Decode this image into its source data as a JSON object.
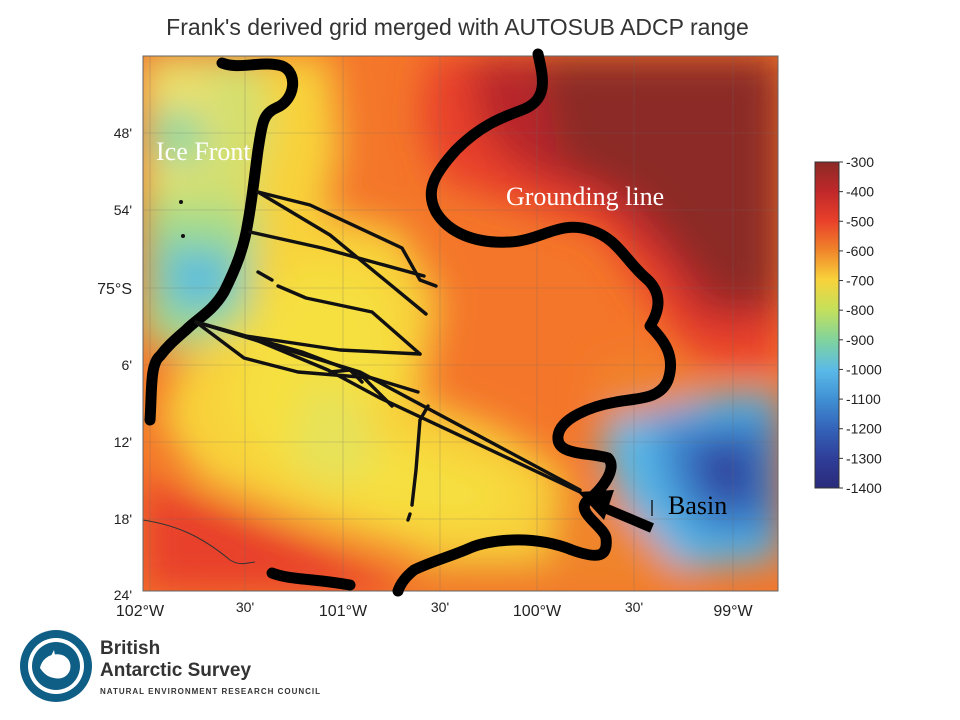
{
  "title": "Frank's derived grid merged with AUTOSUB ADCP range",
  "map": {
    "lat_labels": [
      "48'",
      "54'",
      "75°S",
      "6'",
      "12'",
      "18'",
      "24'"
    ],
    "lon_labels": [
      "102°W",
      "30'",
      "101°W",
      "30'",
      "100°W",
      "30'",
      "99°W"
    ],
    "annotations": {
      "ice_front": "Ice Front",
      "grounding_line": "Grounding line",
      "basin": "Basin"
    }
  },
  "colorbar": {
    "labels": [
      "-300",
      "-400",
      "-500",
      "-600",
      "-700",
      "-800",
      "-900",
      "-1000",
      "-1100",
      "-1200",
      "-1300",
      "-1400"
    ],
    "colors": [
      "#8b2a25",
      "#c0282a",
      "#e8402a",
      "#f0842a",
      "#f8d23a",
      "#c6e05a",
      "#7ed3a0",
      "#5ab9e8",
      "#3f8fd3",
      "#3462b8",
      "#2f3e98",
      "#2a2a7a"
    ]
  },
  "logo": {
    "line1": "British",
    "line2": "Antarctic Survey",
    "line3": "NATURAL ENVIRONMENT RESEARCH COUNCIL"
  }
}
